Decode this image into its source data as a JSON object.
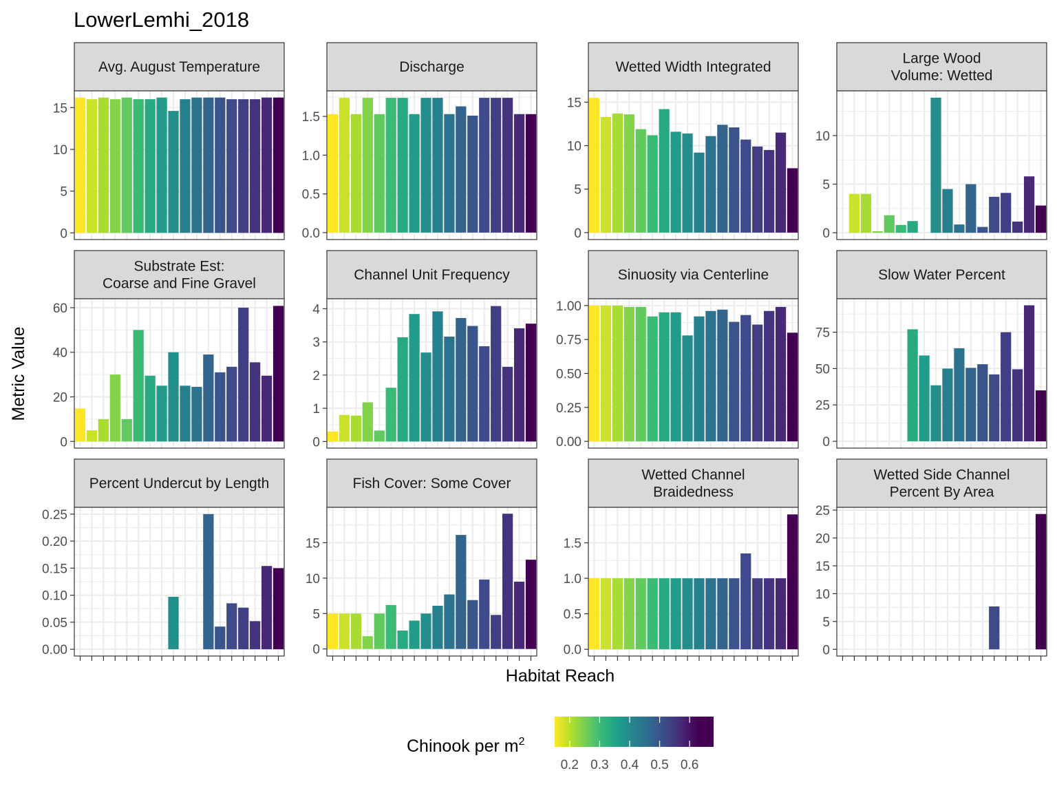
{
  "chart_data": {
    "type": "bar",
    "title": "LowerLemhi_2018",
    "xlabel": "Habitat Reach",
    "ylabel": "Metric Value",
    "grid": true,
    "legend": {
      "title": "Chinook per m",
      "title_superscript": "2",
      "type": "colorbar",
      "placement": "bottom",
      "range": [
        0.15,
        0.68
      ],
      "ticks": [
        0.2,
        0.3,
        0.4,
        0.5,
        0.6
      ],
      "tick_labels": [
        "0.2",
        "0.3",
        "0.4",
        "0.5",
        "0.6"
      ],
      "palette": "viridis (reversed)"
    },
    "fill_values": [
      0.15,
      0.19,
      0.22,
      0.25,
      0.28,
      0.32,
      0.36,
      0.39,
      0.42,
      0.45,
      0.48,
      0.51,
      0.54,
      0.56,
      0.58,
      0.6,
      0.62,
      0.68
    ],
    "panels": [
      {
        "strip": [
          "Avg. August Temperature"
        ],
        "ylim": [
          -0.8,
          17
        ],
        "yticks": [
          0,
          5,
          10,
          15
        ],
        "ytick_labels": [
          "0",
          "5",
          "10",
          "15"
        ],
        "values": [
          16.2,
          16.0,
          16.2,
          16.0,
          16.2,
          16.0,
          16.0,
          16.2,
          14.6,
          16.0,
          16.2,
          16.2,
          16.2,
          16.0,
          16.0,
          16.0,
          16.2,
          16.2
        ]
      },
      {
        "strip": [
          "Discharge"
        ],
        "ylim": [
          -0.09,
          1.83
        ],
        "yticks": [
          0,
          0.5,
          1.0,
          1.5
        ],
        "ytick_labels": [
          "0.0",
          "0.5",
          "1.0",
          "1.5"
        ],
        "values": [
          1.53,
          1.74,
          1.53,
          1.74,
          1.53,
          1.74,
          1.74,
          1.53,
          1.74,
          1.74,
          1.53,
          1.63,
          1.51,
          1.74,
          1.74,
          1.74,
          1.53,
          1.53
        ]
      },
      {
        "strip": [
          "Wetted Width Integrated"
        ],
        "ylim": [
          -0.8,
          16.3
        ],
        "yticks": [
          0,
          5,
          10,
          15
        ],
        "ytick_labels": [
          "0",
          "5",
          "10",
          "15"
        ],
        "values": [
          15.5,
          13.3,
          13.7,
          13.6,
          11.9,
          11.2,
          14.2,
          11.6,
          11.4,
          9.2,
          11.1,
          12.4,
          12.1,
          10.7,
          9.9,
          9.5,
          11.5,
          7.4
        ]
      },
      {
        "strip": [
          "Large Wood",
          "Volume: Wetted"
        ],
        "ylim": [
          -0.7,
          14.6
        ],
        "yticks": [
          0,
          5,
          10
        ],
        "ytick_labels": [
          "0",
          "5",
          "10"
        ],
        "values": [
          null,
          4.0,
          4.0,
          0.15,
          1.8,
          0.8,
          1.2,
          null,
          13.9,
          4.5,
          0.85,
          5.0,
          0.6,
          3.7,
          4.1,
          1.15,
          5.8,
          2.8
        ]
      },
      {
        "strip": [
          "Substrate Est:",
          "Coarse and Fine Gravel"
        ],
        "ylim": [
          -3,
          64
        ],
        "yticks": [
          0,
          20,
          40,
          60
        ],
        "ytick_labels": [
          "0",
          "20",
          "40",
          "60"
        ],
        "values": [
          14.8,
          5.0,
          10.0,
          30.0,
          10.0,
          50.0,
          29.5,
          25.0,
          40.0,
          25.0,
          24.5,
          39.0,
          31.0,
          33.5,
          60.0,
          35.5,
          29.5,
          60.8
        ]
      },
      {
        "strip": [
          "Channel Unit Frequency"
        ],
        "ylim": [
          -0.2,
          4.3
        ],
        "yticks": [
          0,
          1,
          2,
          3,
          4
        ],
        "ytick_labels": [
          "0",
          "1",
          "2",
          "3",
          "4"
        ],
        "values": [
          0.3,
          0.8,
          0.78,
          1.18,
          0.33,
          1.62,
          3.14,
          3.84,
          2.68,
          3.92,
          3.16,
          3.72,
          3.48,
          2.87,
          4.08,
          2.25,
          3.41,
          3.55
        ]
      },
      {
        "strip": [
          "Sinuosity via Centerline"
        ],
        "ylim": [
          -0.05,
          1.05
        ],
        "yticks": [
          0,
          0.25,
          0.5,
          0.75,
          1.0
        ],
        "ytick_labels": [
          "0.00",
          "0.25",
          "0.50",
          "0.75",
          "1.00"
        ],
        "values": [
          1.0,
          1.0,
          1.0,
          0.99,
          0.99,
          0.92,
          0.95,
          0.95,
          0.78,
          0.92,
          0.96,
          0.97,
          0.88,
          0.93,
          0.86,
          0.96,
          0.99,
          0.8
        ]
      },
      {
        "strip": [
          "Slow Water Percent"
        ],
        "ylim": [
          -4.7,
          98
        ],
        "yticks": [
          0,
          25,
          50,
          75
        ],
        "ytick_labels": [
          "0",
          "25",
          "50",
          "75"
        ],
        "values": [
          null,
          null,
          null,
          null,
          null,
          null,
          77.0,
          59.0,
          38.5,
          50.0,
          64.0,
          50.5,
          53.0,
          46.0,
          75.0,
          49.5,
          93.5,
          35.0
        ]
      },
      {
        "strip": [
          "Percent Undercut by Length"
        ],
        "ylim": [
          -0.0125,
          0.2625
        ],
        "yticks": [
          0,
          0.05,
          0.1,
          0.15,
          0.2,
          0.25
        ],
        "ytick_labels": [
          "0.00",
          "0.05",
          "0.10",
          "0.15",
          "0.20",
          "0.25"
        ],
        "values": [
          null,
          null,
          null,
          null,
          null,
          null,
          null,
          null,
          0.097,
          null,
          null,
          0.25,
          0.042,
          0.085,
          0.077,
          0.052,
          0.154,
          0.15
        ]
      },
      {
        "strip": [
          "Fish Cover: Some Cover"
        ],
        "ylim": [
          -1,
          20
        ],
        "yticks": [
          0,
          5,
          10,
          15
        ],
        "ytick_labels": [
          "0",
          "5",
          "10",
          "15"
        ],
        "values": [
          5.0,
          5.0,
          5.0,
          1.8,
          5.0,
          6.2,
          2.6,
          4.0,
          5.0,
          6.1,
          7.7,
          16.1,
          6.9,
          9.8,
          4.8,
          19.1,
          9.5,
          12.6
        ]
      },
      {
        "strip": [
          "Wetted Channel",
          "Braidedness"
        ],
        "ylim": [
          -0.095,
          2.0
        ],
        "yticks": [
          0,
          0.5,
          1.0,
          1.5
        ],
        "ytick_labels": [
          "0.0",
          "0.5",
          "1.0",
          "1.5"
        ],
        "values": [
          1.0,
          1.0,
          1.0,
          1.0,
          1.0,
          1.0,
          1.0,
          1.0,
          1.0,
          1.0,
          1.0,
          1.0,
          1.0,
          1.35,
          1.0,
          1.0,
          1.0,
          1.9
        ]
      },
      {
        "strip": [
          "Wetted Side Channel",
          "Percent By Area"
        ],
        "ylim": [
          -1.2,
          25.5
        ],
        "yticks": [
          0,
          5,
          10,
          15,
          20,
          25
        ],
        "ytick_labels": [
          "0",
          "5",
          "10",
          "15",
          "20",
          "25"
        ],
        "values": [
          null,
          null,
          null,
          null,
          null,
          null,
          null,
          null,
          null,
          null,
          null,
          null,
          null,
          7.7,
          null,
          null,
          null,
          24.3
        ]
      }
    ]
  }
}
